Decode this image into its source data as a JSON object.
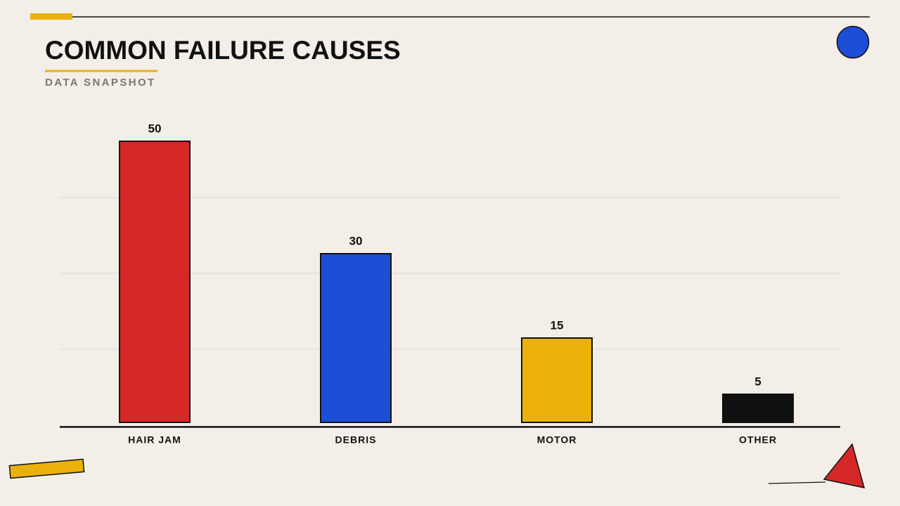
{
  "chart_data": {
    "type": "bar",
    "title": "COMMON FAILURE CAUSES",
    "subtitle": "DATA SNAPSHOT",
    "categories": [
      "HAIR JAM",
      "DEBRIS",
      "MOTOR",
      "OTHER"
    ],
    "values": [
      50,
      30,
      15,
      5
    ],
    "colors": [
      "#d62828",
      "#1d4ed8",
      "#e9b10a",
      "#111111"
    ],
    "ylim": [
      0,
      50
    ],
    "yticks": [
      13,
      26.5,
      40
    ],
    "grid": true
  }
}
